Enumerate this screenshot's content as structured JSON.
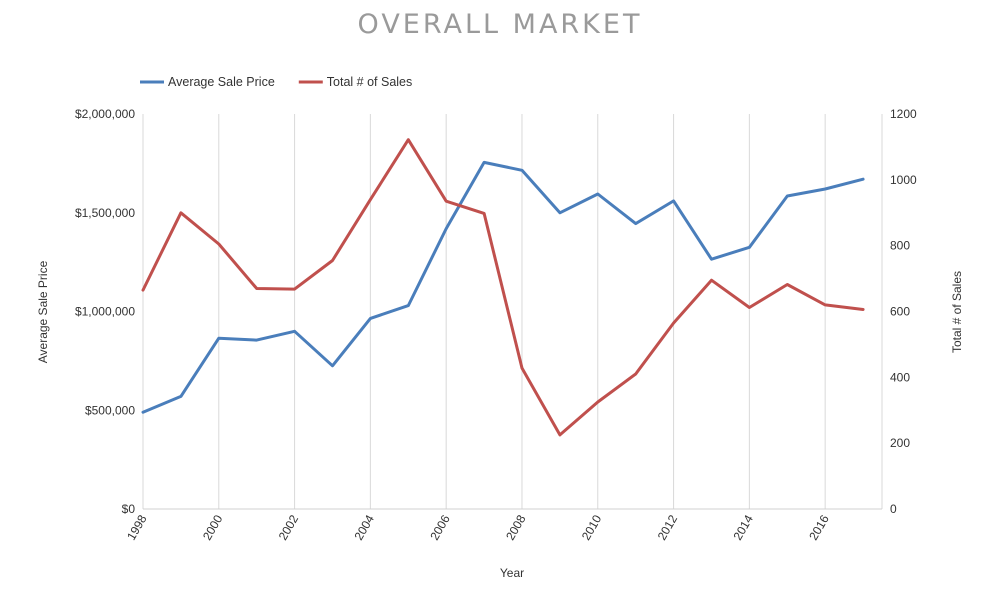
{
  "chart_data": {
    "type": "line",
    "title": "OVERALL MARKET",
    "xlabel": "Year",
    "ylabel_left": "Average Sale Price",
    "ylabel_right": "Total # of Sales",
    "x": [
      1998,
      1999,
      2000,
      2001,
      2002,
      2003,
      2004,
      2005,
      2006,
      2007,
      2008,
      2009,
      2010,
      2011,
      2012,
      2013,
      2014,
      2015,
      2016,
      2017
    ],
    "x_ticks": [
      "1998",
      "2000",
      "2002",
      "2004",
      "2006",
      "2008",
      "2010",
      "2012",
      "2014",
      "2016"
    ],
    "x_tick_values": [
      1998,
      2000,
      2002,
      2004,
      2006,
      2008,
      2010,
      2012,
      2014,
      2016
    ],
    "xlim": [
      1998,
      2017.5
    ],
    "ylim_left": [
      0,
      2000000
    ],
    "ylim_right": [
      0,
      1200
    ],
    "left_ticks": [
      "$0",
      "$500,000",
      "$1,000,000",
      "$1,500,000",
      "$2,000,000"
    ],
    "left_tick_values": [
      0,
      500000,
      1000000,
      1500000,
      2000000
    ],
    "right_ticks": [
      "0",
      "200",
      "400",
      "600",
      "800",
      "1000",
      "1200"
    ],
    "right_tick_values": [
      0,
      200,
      400,
      600,
      800,
      1000,
      1200
    ],
    "grid": "vertical",
    "legend_position": "top-left",
    "series": [
      {
        "name": "Average Sale Price",
        "axis": "left",
        "color": "#4a7ebb",
        "values": [
          490000,
          570000,
          865000,
          855000,
          900000,
          725000,
          965000,
          1030000,
          1420000,
          1755000,
          1715000,
          1500000,
          1595000,
          1445000,
          1560000,
          1265000,
          1325000,
          1585000,
          1620000,
          1670000
        ]
      },
      {
        "name": "Total # of Sales",
        "axis": "right",
        "color": "#c0504d",
        "values": [
          665,
          900,
          805,
          670,
          668,
          755,
          940,
          1122,
          935,
          898,
          428,
          225,
          325,
          410,
          565,
          695,
          612,
          682,
          620,
          606
        ]
      }
    ]
  }
}
